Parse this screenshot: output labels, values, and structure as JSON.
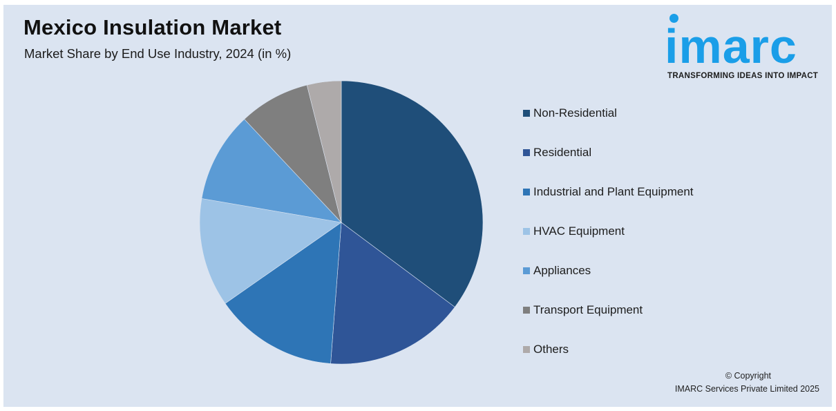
{
  "header": {
    "title": "Mexico Insulation Market",
    "subtitle": "Market Share by End Use Industry, 2024 (in %)"
  },
  "logo": {
    "wordmark": "imarc",
    "tagline": "TRANSFORMING IDEAS INTO IMPACT",
    "color": "#1a9ee8"
  },
  "chart_data": {
    "type": "pie",
    "title": "Mexico Insulation Market",
    "subtitle": "Market Share by End Use Industry, 2024 (in %)",
    "legend_position": "right",
    "start_angle_deg": 0,
    "direction": "clockwise",
    "categories": [
      "Non-Residential",
      "Residential",
      "Industrial and Plant Equipment",
      "HVAC Equipment",
      "Appliances",
      "Transport Equipment",
      "Others"
    ],
    "values": [
      35.2,
      16.0,
      14.1,
      12.4,
      10.3,
      8.1,
      3.9
    ],
    "colors": [
      "#1f4e79",
      "#2f5597",
      "#2e75b6",
      "#9dc3e6",
      "#5b9bd5",
      "#7f7f7f",
      "#aeaaaa"
    ]
  },
  "footer": {
    "copyright_line1": "© Copyright",
    "copyright_line2": "IMARC Services Private Limited 2025"
  }
}
